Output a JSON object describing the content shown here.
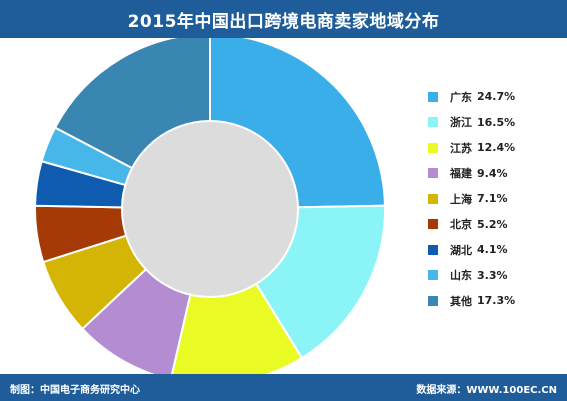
{
  "header": {
    "title": "2015年中国出口跨境电商卖家地域分布"
  },
  "footer": {
    "left": "制图：中国电子商务研究中心",
    "right": "数据来源：WWW.100EC.CN"
  },
  "colors": {
    "header_bg": "#1e5d9a",
    "inner_circle": "#dcdcdc"
  },
  "chart_data": {
    "type": "pie",
    "variant": "donut",
    "title": "2015年中国出口跨境电商卖家地域分布",
    "legend_position": "right",
    "categories": [
      "广东",
      "浙江",
      "江苏",
      "福建",
      "上海",
      "北京",
      "湖北",
      "山东",
      "其他"
    ],
    "values": [
      24.7,
      16.5,
      12.4,
      9.4,
      7.1,
      5.2,
      4.1,
      3.3,
      17.3
    ],
    "value_labels": [
      "24.7%",
      "16.5%",
      "12.4%",
      "9.4%",
      "7.1%",
      "5.2%",
      "4.1%",
      "3.3%",
      "17.3%"
    ],
    "colors": [
      "#3aaee8",
      "#8af4f6",
      "#e9fa24",
      "#b48cd2",
      "#d4b404",
      "#a63a06",
      "#0f5bb0",
      "#47b6e8",
      "#3986b2"
    ]
  }
}
